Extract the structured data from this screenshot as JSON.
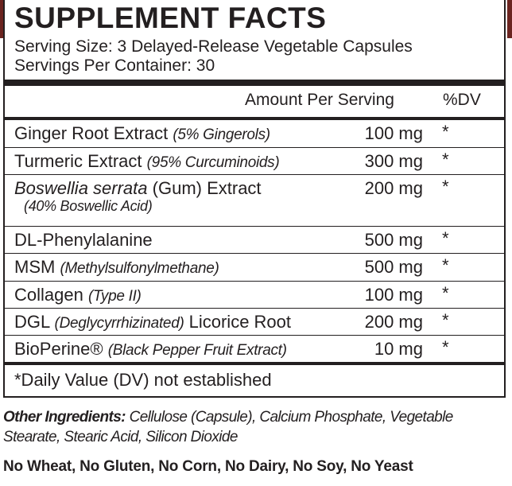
{
  "panel": {
    "title": "SUPPLEMENT FACTS",
    "serving_size": "Serving Size: 3 Delayed-Release Vegetable Capsules",
    "servings_per_container": "Servings Per Container: 30",
    "header_amount": "Amount Per Serving",
    "header_dv": "%DV",
    "rows": [
      {
        "name": "Ginger Root Extract",
        "note": "(5% Gingerols)",
        "amount": "100 mg",
        "dv": "*"
      },
      {
        "name": "Turmeric Extract",
        "note": "(95% Curcuminoids)",
        "amount": "300 mg",
        "dv": "*"
      },
      {
        "name_italic": "Boswellia serrata",
        "name": "(Gum) Extract",
        "sub": "(40% Boswellic Acid)",
        "amount": "200 mg",
        "dv": "*"
      },
      {
        "name": "DL-Phenylalanine",
        "note": "",
        "amount": "500 mg",
        "dv": "*"
      },
      {
        "name": "MSM",
        "note": "(Methylsulfonylmethane)",
        "amount": "500 mg",
        "dv": "*"
      },
      {
        "name": "Collagen",
        "note": "(Type II)",
        "amount": "100 mg",
        "dv": "*"
      },
      {
        "name": "DGL",
        "note": "(Deglycyrrhizinated)",
        "name_after": "Licorice Root",
        "amount": "200 mg",
        "dv": "*"
      },
      {
        "name": "BioPerine®",
        "note": "(Black Pepper Fruit Extract)",
        "amount": "10 mg",
        "dv": "*"
      }
    ],
    "footnote": "*Daily Value (DV) not established"
  },
  "other_ingredients": {
    "label": "Other Ingredients:",
    "text": "Cellulose (Capsule), Calcium Phosphate, Vegetable Stearate, Stearic Acid, Silicon Dioxide"
  },
  "allergen_statement": "No Wheat, No Gluten, No Corn, No Dairy, No Soy, No Yeast",
  "colors": {
    "text": "#231f20",
    "brand_edge": "#6b2420"
  }
}
